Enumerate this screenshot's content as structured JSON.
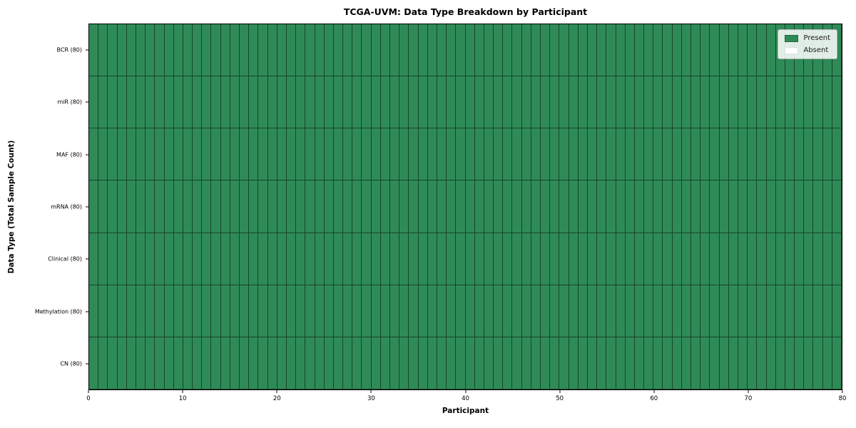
{
  "chart_data": {
    "type": "heatmap",
    "title": "TCGA-UVM: Data Type Breakdown by Participant",
    "xlabel": "Participant",
    "ylabel": "Data Type (Total Sample Count)",
    "x_range": [
      0,
      80
    ],
    "x_ticks": [
      0,
      10,
      20,
      30,
      40,
      50,
      60,
      70,
      80
    ],
    "n_participants": 80,
    "rows": [
      {
        "label": "BCR (80)",
        "data_type": "BCR",
        "total_samples": 80,
        "present_count": 80,
        "absent_count": 0
      },
      {
        "label": "miR (80)",
        "data_type": "miR",
        "total_samples": 80,
        "present_count": 80,
        "absent_count": 0
      },
      {
        "label": "MAF (80)",
        "data_type": "MAF",
        "total_samples": 80,
        "present_count": 80,
        "absent_count": 0
      },
      {
        "label": "mRNA (80)",
        "data_type": "mRNA",
        "total_samples": 80,
        "present_count": 80,
        "absent_count": 0
      },
      {
        "label": "Clinical (80)",
        "data_type": "Clinical",
        "total_samples": 80,
        "present_count": 80,
        "absent_count": 0
      },
      {
        "label": "Methylation (80)",
        "data_type": "Methylation",
        "total_samples": 80,
        "present_count": 80,
        "absent_count": 0
      },
      {
        "label": "CN (80)",
        "data_type": "CN",
        "total_samples": 80,
        "present_count": 80,
        "absent_count": 0
      }
    ],
    "cell_values_note": "7 rows x 80 participant columns; every cell = Present (value 1) for all rows",
    "grid": true,
    "legend": {
      "position": "upper right",
      "entries": [
        {
          "label": "Present",
          "color": "#2e8b57"
        },
        {
          "label": "Absent",
          "color": "#ffffff"
        }
      ]
    },
    "colors": {
      "present": "#2e8b57",
      "absent": "#ffffff",
      "cell_edge": "rgba(0,0,0,0.50)",
      "plot_border": "#000000"
    }
  }
}
